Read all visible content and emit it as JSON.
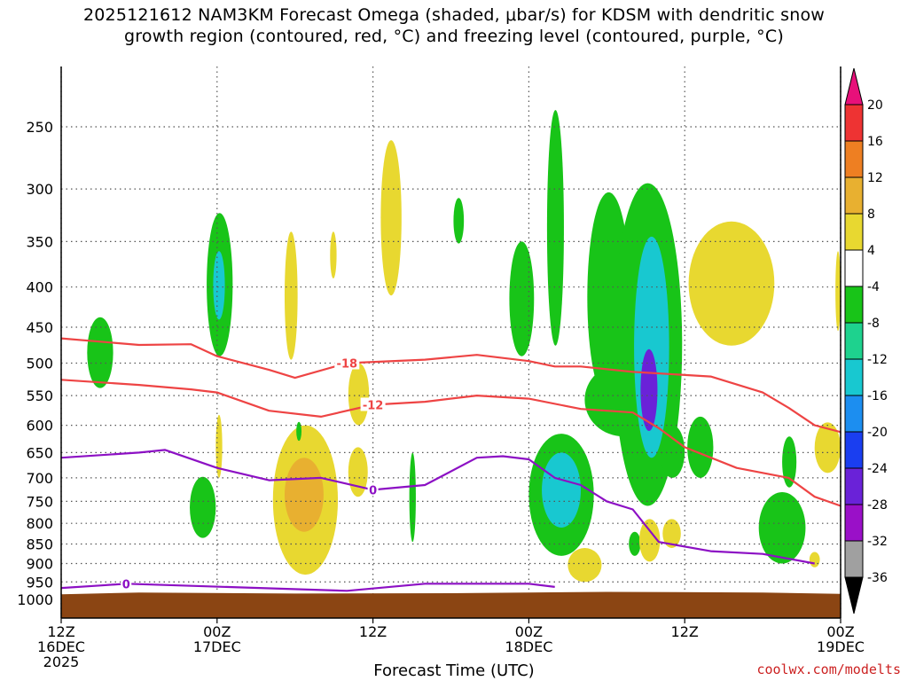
{
  "title_line1": "2025121612 NAM3KM Forecast Omega (shaded, μbar/s) for KDSM with dendritic snow",
  "title_line2": "growth region (contoured, red, °C) and freezing level (contoured, purple, °C)",
  "xlabel": "Forecast Time (UTC)",
  "credit": "coolwx.com/modelts",
  "chart_data": {
    "type": "heatmap",
    "title": "2025121612 NAM3KM Forecast Omega (shaded, μbar/s) for KDSM with dendritic snow growth region (contoured, red, °C) and freezing level (contoured, purple, °C)",
    "xlabel": "Forecast Time (UTC)",
    "ylabel": "",
    "x_unit": "forecast hour",
    "xlim": [
      0,
      60
    ],
    "y_unit": "hPa",
    "ylim": [
      1025,
      200
    ],
    "y_scale": "log-pressure",
    "y_ticks": [
      250,
      300,
      350,
      400,
      450,
      500,
      550,
      600,
      650,
      700,
      750,
      800,
      850,
      900,
      950,
      1000
    ],
    "x_ticks": [
      {
        "hour": 0,
        "lines": [
          "12Z",
          "16DEC",
          "2025"
        ]
      },
      {
        "hour": 12,
        "lines": [
          "00Z",
          "17DEC"
        ]
      },
      {
        "hour": 24,
        "lines": [
          "12Z"
        ]
      },
      {
        "hour": 36,
        "lines": [
          "00Z",
          "18DEC"
        ]
      },
      {
        "hour": 48,
        "lines": [
          "12Z"
        ]
      },
      {
        "hour": 60,
        "lines": [
          "00Z",
          "19DEC"
        ]
      }
    ],
    "grid": true,
    "colorbar": {
      "position": "right",
      "unit": "μbar/s",
      "labels": [
        20,
        16,
        12,
        8,
        4,
        -4,
        -8,
        -12,
        -16,
        -20,
        -24,
        -28,
        -32,
        -36
      ],
      "bins": [
        {
          "from": 20,
          "to": null,
          "color": "#e8107a"
        },
        {
          "from": 16,
          "to": 20,
          "color": "#ee3333"
        },
        {
          "from": 12,
          "to": 16,
          "color": "#ee7f22"
        },
        {
          "from": 8,
          "to": 12,
          "color": "#e8b030"
        },
        {
          "from": 4,
          "to": 8,
          "color": "#e8d830"
        },
        {
          "from": -4,
          "to": 4,
          "color": "#ffffff"
        },
        {
          "from": -8,
          "to": -4,
          "color": "#18c418"
        },
        {
          "from": -12,
          "to": -8,
          "color": "#1ed28e"
        },
        {
          "from": -16,
          "to": -12,
          "color": "#18c8d0"
        },
        {
          "from": -20,
          "to": -16,
          "color": "#1c8ef0"
        },
        {
          "from": -24,
          "to": -20,
          "color": "#1a3ef0"
        },
        {
          "from": -28,
          "to": -24,
          "color": "#6a22d8"
        },
        {
          "from": -32,
          "to": -28,
          "color": "#9a10c8"
        },
        {
          "from": -36,
          "to": -32,
          "color": "#a0a0a0"
        },
        {
          "from": null,
          "to": -36,
          "color": "#000000"
        }
      ]
    },
    "terrain": {
      "color": "#8b4513",
      "surface_pressure": [
        [
          0,
          985
        ],
        [
          6,
          980
        ],
        [
          18,
          983
        ],
        [
          30,
          982
        ],
        [
          42,
          978
        ],
        [
          54,
          980
        ],
        [
          60,
          984
        ]
      ]
    },
    "contours": [
      {
        "label": "-18",
        "color": "#ee4444",
        "points": [
          [
            0,
            465
          ],
          [
            6,
            474
          ],
          [
            10,
            473
          ],
          [
            12,
            490
          ],
          [
            16,
            510
          ],
          [
            18,
            522
          ],
          [
            22,
            500
          ],
          [
            28,
            495
          ],
          [
            32,
            488
          ],
          [
            36,
            497
          ],
          [
            38,
            505
          ],
          [
            40,
            505
          ],
          [
            44,
            513
          ],
          [
            50,
            520
          ],
          [
            54,
            545
          ],
          [
            56,
            570
          ],
          [
            58,
            600
          ],
          [
            60,
            612
          ]
        ]
      },
      {
        "label": "-12",
        "color": "#ee4444",
        "points": [
          [
            0,
            525
          ],
          [
            6,
            533
          ],
          [
            10,
            540
          ],
          [
            12,
            545
          ],
          [
            16,
            575
          ],
          [
            20,
            585
          ],
          [
            24,
            565
          ],
          [
            28,
            560
          ],
          [
            32,
            550
          ],
          [
            36,
            555
          ],
          [
            40,
            572
          ],
          [
            44,
            578
          ],
          [
            46,
            605
          ],
          [
            48,
            640
          ],
          [
            52,
            680
          ],
          [
            56,
            700
          ],
          [
            58,
            740
          ],
          [
            60,
            760
          ]
        ]
      },
      {
        "label": "0",
        "color": "#8c10c4",
        "points": [
          [
            0,
            660
          ],
          [
            6,
            650
          ],
          [
            8,
            645
          ],
          [
            12,
            680
          ],
          [
            16,
            705
          ],
          [
            20,
            700
          ],
          [
            24,
            725
          ],
          [
            28,
            715
          ],
          [
            32,
            660
          ],
          [
            34,
            657
          ],
          [
            36,
            663
          ],
          [
            38,
            700
          ],
          [
            40,
            715
          ],
          [
            42,
            750
          ],
          [
            44,
            768
          ],
          [
            46,
            845
          ],
          [
            50,
            868
          ],
          [
            54,
            875
          ],
          [
            58,
            900
          ]
        ]
      },
      {
        "label": "0",
        "color": "#8c10c4",
        "points": [
          [
            0,
            967
          ],
          [
            3,
            960
          ],
          [
            5,
            955
          ],
          [
            22,
            975
          ],
          [
            28,
            955
          ],
          [
            36,
            955
          ],
          [
            38,
            964
          ]
        ]
      }
    ],
    "omega_regions": [
      {
        "value": -6,
        "x": [
          2,
          4
        ],
        "p": [
          437,
          538
        ]
      },
      {
        "value": -6,
        "x": [
          11.2,
          13.2
        ],
        "p": [
          322,
          490
        ]
      },
      {
        "value": -14,
        "x": [
          11.7,
          12.6
        ],
        "p": [
          360,
          440
        ]
      },
      {
        "value": 6,
        "x": [
          11.9,
          12.4
        ],
        "p": [
          582,
          700
        ]
      },
      {
        "value": -6,
        "x": [
          9.9,
          11.9
        ],
        "p": [
          698,
          835
        ]
      },
      {
        "value": 6,
        "x": [
          17.2,
          18.2
        ],
        "p": [
          340,
          495
        ]
      },
      {
        "value": 6,
        "x": [
          20.7,
          21.2
        ],
        "p": [
          340,
          390
        ]
      },
      {
        "value": 6,
        "x": [
          16.3,
          21.3
        ],
        "p": [
          600,
          930
        ]
      },
      {
        "value": 10,
        "x": [
          17.2,
          20.2
        ],
        "p": [
          660,
          820
        ]
      },
      {
        "value": -6,
        "x": [
          18.1,
          18.5
        ],
        "p": [
          594,
          628
        ]
      },
      {
        "value": 6,
        "x": [
          22.1,
          23.7
        ],
        "p": [
          500,
          600
        ]
      },
      {
        "value": 6,
        "x": [
          22.1,
          23.6
        ],
        "p": [
          640,
          740
        ]
      },
      {
        "value": 6,
        "x": [
          24.6,
          26.2
        ],
        "p": [
          260,
          410
        ]
      },
      {
        "value": -6,
        "x": [
          26.8,
          27.3
        ],
        "p": [
          650,
          845
        ]
      },
      {
        "value": -6,
        "x": [
          30.2,
          31.0
        ],
        "p": [
          308,
          352
        ]
      },
      {
        "value": -6,
        "x": [
          34.5,
          36.4
        ],
        "p": [
          350,
          490
        ]
      },
      {
        "value": -6,
        "x": [
          36.0,
          41.0
        ],
        "p": [
          615,
          880
        ]
      },
      {
        "value": -14,
        "x": [
          37.0,
          40.0
        ],
        "p": [
          650,
          810
        ]
      },
      {
        "value": -6,
        "x": [
          37.4,
          38.7
        ],
        "p": [
          238,
          475
        ]
      },
      {
        "value": -6,
        "x": [
          40.5,
          43.8
        ],
        "p": [
          303,
          560
        ]
      },
      {
        "value": -6,
        "x": [
          40.3,
          46.3
        ],
        "p": [
          500,
          620
        ]
      },
      {
        "value": -6,
        "x": [
          42.5,
          47.8
        ],
        "p": [
          295,
          760
        ]
      },
      {
        "value": -14,
        "x": [
          44.1,
          46.8
        ],
        "p": [
          345,
          660
        ]
      },
      {
        "value": -26,
        "x": [
          44.6,
          45.9
        ],
        "p": [
          480,
          610
        ]
      },
      {
        "value": 6,
        "x": [
          39.0,
          41.6
        ],
        "p": [
          860,
          950
        ]
      },
      {
        "value": -6,
        "x": [
          43.7,
          44.6
        ],
        "p": [
          820,
          880
        ]
      },
      {
        "value": 6,
        "x": [
          44.5,
          46.1
        ],
        "p": [
          790,
          895
        ]
      },
      {
        "value": 6,
        "x": [
          46.3,
          47.7
        ],
        "p": [
          790,
          860
        ]
      },
      {
        "value": -6,
        "x": [
          46.1,
          48.0
        ],
        "p": [
          600,
          700
        ]
      },
      {
        "value": -6,
        "x": [
          48.2,
          50.2
        ],
        "p": [
          585,
          700
        ]
      },
      {
        "value": 6,
        "x": [
          48.3,
          54.9
        ],
        "p": [
          330,
          475
        ]
      },
      {
        "value": -6,
        "x": [
          53.7,
          57.3
        ],
        "p": [
          730,
          900
        ]
      },
      {
        "value": -6,
        "x": [
          55.5,
          56.6
        ],
        "p": [
          620,
          720
        ]
      },
      {
        "value": 6,
        "x": [
          57.6,
          58.4
        ],
        "p": [
          870,
          910
        ]
      },
      {
        "value": 6,
        "x": [
          58.0,
          60.0
        ],
        "p": [
          595,
          690
        ]
      },
      {
        "value": 6,
        "x": [
          59.6,
          60.0
        ],
        "p": [
          360,
          455
        ]
      }
    ]
  }
}
